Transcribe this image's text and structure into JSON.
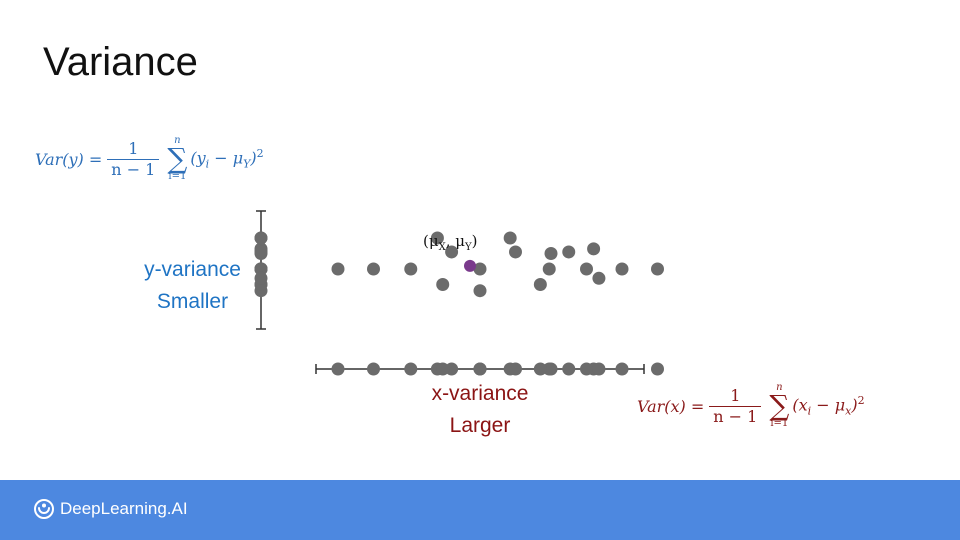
{
  "title": "Variance",
  "formula_y": {
    "lhs": "Var(y) =",
    "frac_num": "1",
    "frac_den": "n − 1",
    "sum_top": "n",
    "sum_bot": "i=1",
    "term_open": "(y",
    "term_sub": "i",
    "term_mid": " − μ",
    "term_mu_sub": "Y",
    "term_close": ")",
    "exp": "2"
  },
  "formula_x": {
    "lhs": "Var(x) =",
    "frac_num": "1",
    "frac_den": "n − 1",
    "sum_top": "n",
    "sum_bot": "i=1",
    "term_open": "(x",
    "term_sub": "i",
    "term_mid": " − μ",
    "term_mu_sub": "x",
    "term_close": ")",
    "exp": "2"
  },
  "y_variance_label": "y-variance",
  "y_smaller_label": "Smaller",
  "x_variance_label": "x-variance",
  "x_larger_label": "Larger",
  "mean_label": {
    "open": "(μ",
    "sub1": "X",
    "mid": ", μ",
    "sub2": "Y",
    "close": ")"
  },
  "colors": {
    "point": "#6b6b6b",
    "mean_point": "#7a3a8c",
    "y_formula": "#2e6fb8",
    "x_formula": "#8a1a1a",
    "y_label": "#1f74c4",
    "x_label": "#8b1414",
    "footer": "#4d88e0"
  },
  "brand_name": "DeepLearning.AI",
  "brand_icon": "deeplearning-logo-icon",
  "scatter_points": [
    {
      "x": 0.85,
      "y": 2.0
    },
    {
      "x": 2.0,
      "y": 1.0
    },
    {
      "x": 3.2,
      "y": 1.3
    },
    {
      "x": 1.0,
      "y": 1.1
    },
    {
      "x": 2.5,
      "y": 1.1
    },
    {
      "x": 3.0,
      "y": 0.0
    },
    {
      "x": 4.0,
      "y": 0.0
    },
    {
      "x": 0.0,
      "y": 0.0
    },
    {
      "x": 1.95,
      "y": 0.0
    },
    {
      "x": 5.0,
      "y": 0.0
    },
    {
      "x": -0.8,
      "y": 1.1
    },
    {
      "x": -1.95,
      "y": 0.0
    },
    {
      "x": -3.0,
      "y": 0.0
    },
    {
      "x": -4.0,
      "y": 0.0
    },
    {
      "x": -1.2,
      "y": 2.0
    },
    {
      "x": -1.05,
      "y": -1.0
    },
    {
      "x": 0.0,
      "y": -1.4
    },
    {
      "x": 1.7,
      "y": -1.0
    },
    {
      "x": 3.35,
      "y": -0.6
    }
  ],
  "mean_point": {
    "x": 0.0,
    "y": 0.2
  }
}
